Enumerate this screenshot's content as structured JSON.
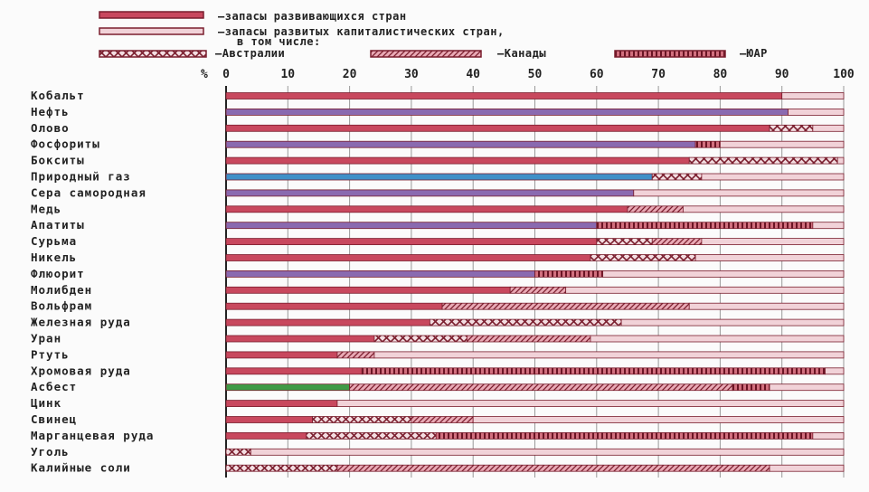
{
  "chart_data": {
    "type": "bar",
    "orientation": "horizontal",
    "stacked": true,
    "xlim": [
      0,
      100
    ],
    "x_unit_label": "%",
    "ticks": [
      "0",
      "10",
      "20",
      "30",
      "40",
      "50",
      "60",
      "70",
      "80",
      "90",
      "100"
    ],
    "legend": {
      "developing": "—запасы развивающихся стран",
      "developed_line1": "—запасы развитых капиталистических стран,",
      "developed_line2": "в том числе:",
      "australia": "—Австралии",
      "canada": "—Канады",
      "sa": "—ЮАР"
    },
    "categories": [
      "Кобальт",
      "Нефть",
      "Олово",
      "Фосфориты",
      "Бокситы",
      "Природный газ",
      "Сера самородная",
      "Медь",
      "Апатиты",
      "Сурьма",
      "Никель",
      "Флюорит",
      "Молибден",
      "Вольфрам",
      "Железная руда",
      "Уран",
      "Ртуть",
      "Хромовая руда",
      "Асбест",
      "Цинк",
      "Свинец",
      "Марганцевая руда",
      "Уголь",
      "Калийные соли"
    ],
    "series": [
      {
        "key": "developing",
        "name": "запасы развивающихся стран",
        "values": [
          90,
          91,
          88,
          76,
          75,
          69,
          66,
          65,
          60,
          60,
          59,
          50,
          46,
          35,
          33,
          24,
          18,
          22,
          20,
          18,
          14,
          13,
          0,
          0
        ]
      },
      {
        "key": "australia",
        "name": "Австралии",
        "values": [
          0,
          0,
          7,
          0,
          24,
          8,
          0,
          0,
          0,
          9,
          17,
          0,
          0,
          0,
          31,
          15,
          0,
          0,
          0,
          0,
          16,
          21,
          4,
          18
        ]
      },
      {
        "key": "canada",
        "name": "Канады",
        "values": [
          0,
          0,
          0,
          0,
          0,
          0,
          0,
          9,
          0,
          8,
          0,
          0,
          9,
          40,
          0,
          20,
          6,
          0,
          62,
          0,
          10,
          0,
          0,
          70
        ]
      },
      {
        "key": "sa",
        "name": "ЮАР",
        "values": [
          0,
          0,
          0,
          4,
          0,
          0,
          0,
          0,
          35,
          0,
          0,
          11,
          0,
          0,
          0,
          0,
          0,
          75,
          6,
          0,
          0,
          61,
          0,
          0
        ]
      },
      {
        "key": "developed_other",
        "name": "запасы развитых капиталистических стран",
        "values": [
          10,
          9,
          5,
          20,
          1,
          23,
          34,
          26,
          5,
          23,
          24,
          39,
          45,
          25,
          36,
          41,
          76,
          3,
          12,
          82,
          60,
          5,
          96,
          12
        ]
      }
    ],
    "colors": {
      "developing": "#c8485e",
      "developed": "#f1d2d8",
      "purple": "#8a6ab0",
      "blue": "#3f90c8",
      "green": "#3f9a46",
      "dark": "#333333",
      "stroke": "#7a1e2e"
    },
    "developing_bar_color": [
      "developing",
      "purple",
      "developing",
      "purple",
      "developing",
      "blue",
      "purple",
      "developing",
      "purple",
      "developing",
      "developing",
      "purple",
      "developing",
      "developing",
      "developing",
      "developing",
      "developing",
      "developing",
      "green",
      "developing",
      "developing",
      "developing",
      "dark",
      "developing"
    ]
  }
}
